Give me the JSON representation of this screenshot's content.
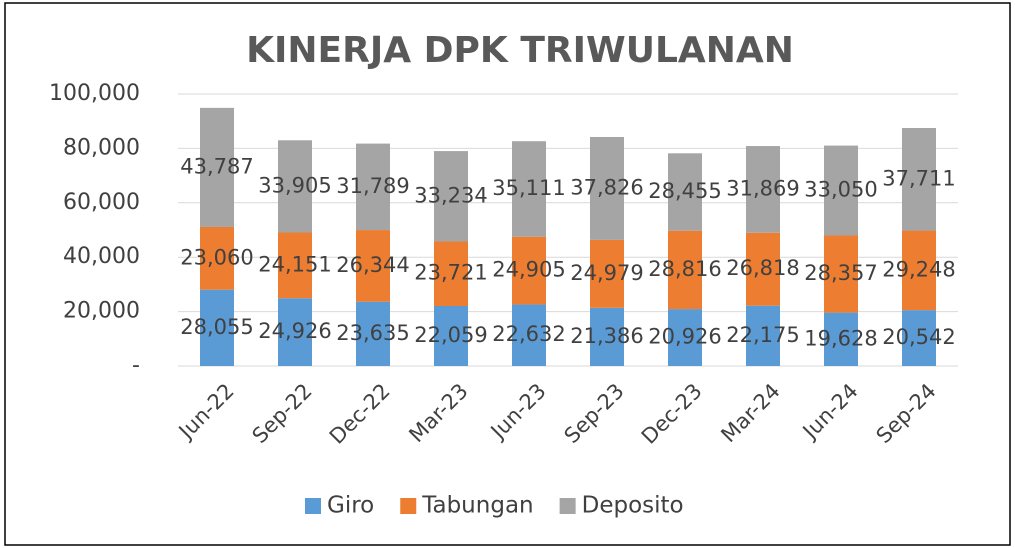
{
  "chart_data": {
    "type": "stacked_bar",
    "title": "KINERJA DPK TRIWULANAN",
    "categories": [
      "Jun-22",
      "Sep-22",
      "Dec-22",
      "Mar-23",
      "Jun-23",
      "Sep-23",
      "Dec-23",
      "Mar-24",
      "Jun-24",
      "Sep-24"
    ],
    "series": [
      {
        "name": "Giro",
        "color": "#5b9bd5",
        "values": [
          28055,
          24926,
          23635,
          22059,
          22632,
          21386,
          20926,
          22175,
          19628,
          20542
        ],
        "value_labels": [
          "28,055",
          "24,926",
          "23,635",
          "22,059",
          "22,632",
          "21,386",
          "20,926",
          "22,175",
          "19,628",
          "20,542"
        ]
      },
      {
        "name": "Tabungan",
        "color": "#ed7d31",
        "values": [
          23060,
          24151,
          26344,
          23721,
          24905,
          24979,
          28816,
          26818,
          28357,
          29248
        ],
        "value_labels": [
          "23,060",
          "24,151",
          "26,344",
          "23,721",
          "24,905",
          "24,979",
          "28,816",
          "26,818",
          "28,357",
          "29,248"
        ]
      },
      {
        "name": "Deposito",
        "color": "#a5a5a5",
        "values": [
          43787,
          33905,
          31789,
          33234,
          35111,
          37826,
          28455,
          31869,
          33050,
          37711
        ],
        "value_labels": [
          "43,787",
          "33,905",
          "31,789",
          "33,234",
          "35,111",
          "37,826",
          "28,455",
          "31,869",
          "33,050",
          "37,711"
        ]
      }
    ],
    "ylim": [
      0,
      100000
    ],
    "yticks": [
      {
        "value": 0,
        "label": "-"
      },
      {
        "value": 20000,
        "label": "20,000"
      },
      {
        "value": 40000,
        "label": "40,000"
      },
      {
        "value": 60000,
        "label": "60,000"
      },
      {
        "value": 80000,
        "label": "80,000"
      },
      {
        "value": 100000,
        "label": "100,000"
      }
    ],
    "grid": true,
    "legend": "bottom"
  }
}
